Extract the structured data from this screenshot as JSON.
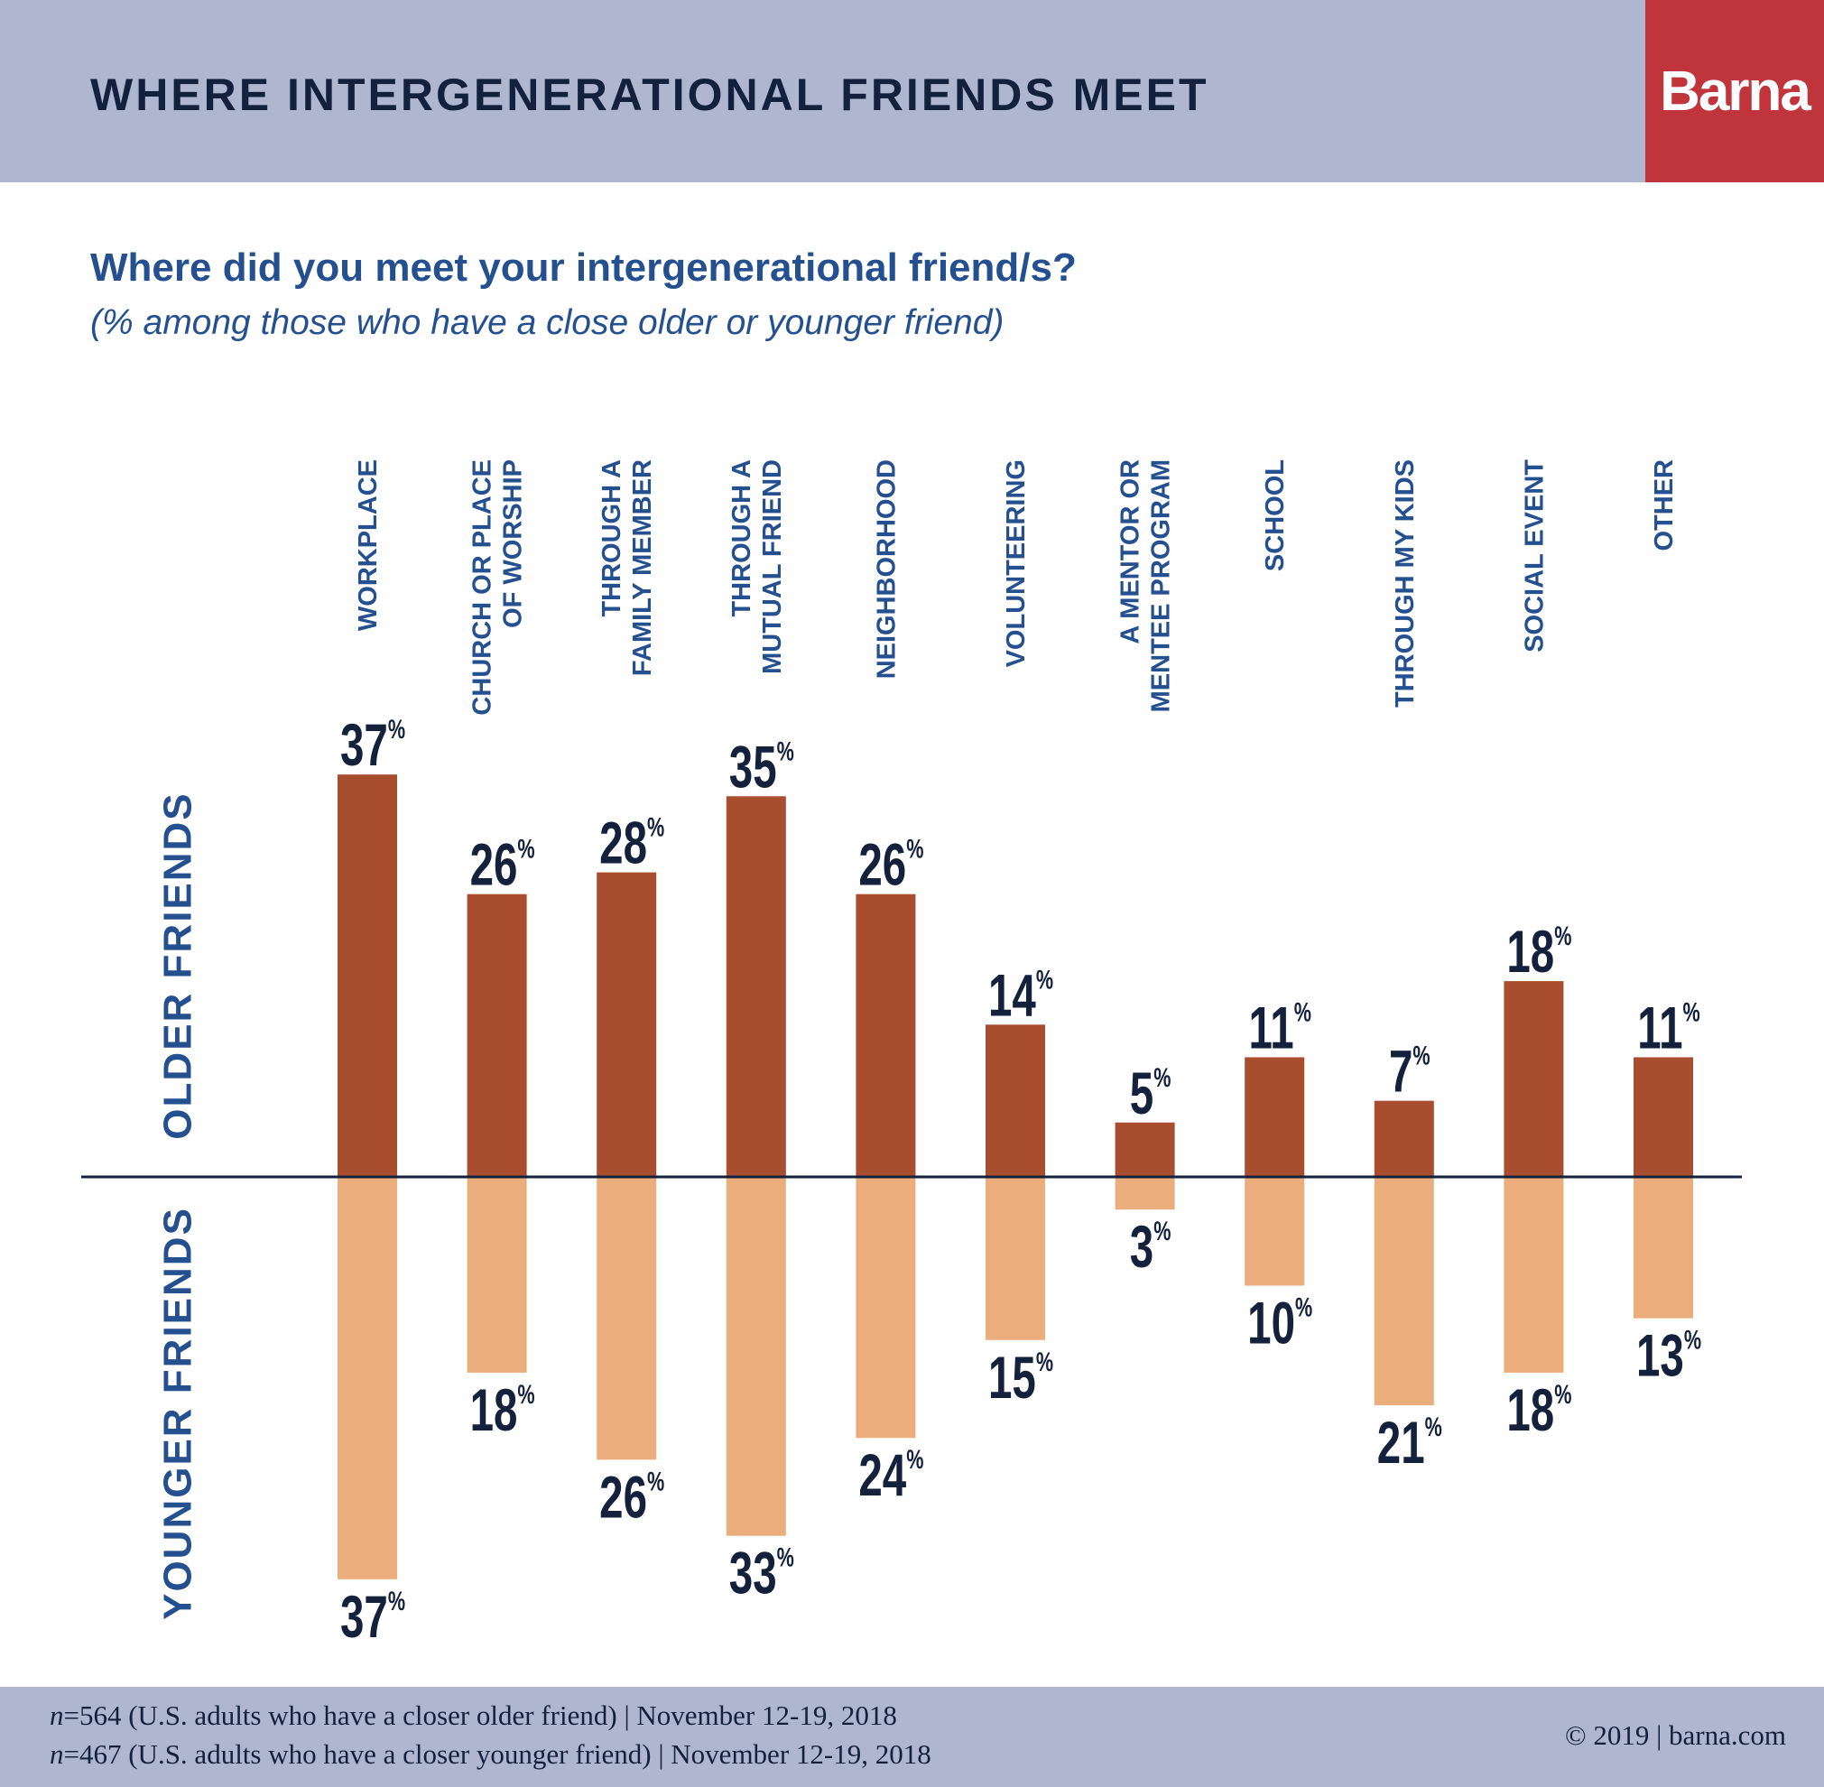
{
  "header": {
    "title": "WHERE INTERGENERATIONAL FRIENDS MEET",
    "logo": "Barna"
  },
  "question": "Where did you meet your intergenerational friend/s?",
  "subtitle": "(% among those who have a close older or younger friend)",
  "colors": {
    "older": "#a84d2e",
    "younger": "#ecad7c",
    "header": "#aeb6d0",
    "brand": "#c0343c",
    "label": "#24508f"
  },
  "chart_data": {
    "type": "bar",
    "layout": "diverging",
    "categories": [
      [
        "WORKPLACE"
      ],
      [
        "CHURCH OR PLACE",
        "OF WORSHIP"
      ],
      [
        "THROUGH A",
        "FAMILY MEMBER"
      ],
      [
        "THROUGH A",
        "MUTUAL FRIEND"
      ],
      [
        "NEIGHBORHOOD"
      ],
      [
        "VOLUNTEERING"
      ],
      [
        "A MENTOR OR",
        "MENTEE PROGRAM"
      ],
      [
        "SCHOOL"
      ],
      [
        "THROUGH MY KIDS"
      ],
      [
        "SOCIAL EVENT"
      ],
      [
        "OTHER"
      ]
    ],
    "series": [
      {
        "name": "OLDER FRIENDS",
        "direction": "up",
        "values": [
          37,
          26,
          28,
          35,
          26,
          14,
          5,
          11,
          7,
          18,
          11
        ]
      },
      {
        "name": "YOUNGER FRIENDS",
        "direction": "down",
        "values": [
          37,
          18,
          26,
          33,
          24,
          15,
          3,
          10,
          21,
          18,
          13
        ]
      }
    ],
    "unit": "%",
    "grid": false
  },
  "footer": {
    "n1_var": "n",
    "n1_text": "=564 (U.S. adults who have a closer older friend) | November 12-19, 2018",
    "n2_var": "n",
    "n2_text": "=467 (U.S. adults who have a closer younger friend) | November 12-19, 2018",
    "copyright": "© 2019 | barna.com"
  }
}
